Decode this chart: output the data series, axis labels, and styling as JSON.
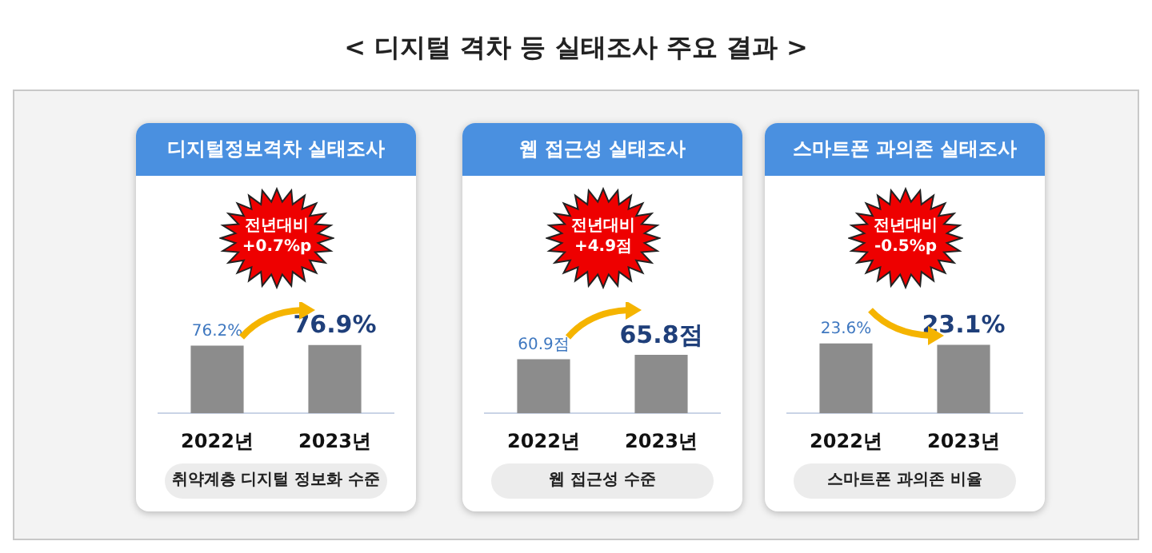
{
  "chart_data": [
    {
      "type": "other",
      "title": "< 디지털 격차 등 실태조사 주요 결과 >"
    },
    {
      "type": "bar",
      "title": "디지털정보격차 실태조사",
      "xlabel": "취약계층 디지털 정보화 수준",
      "categories": [
        "2022년",
        "2023년"
      ],
      "values": [
        76.2,
        76.9
      ],
      "colors": [
        "#8c8c8c",
        "#8c8c8c"
      ],
      "value_labels": [
        "76.2%",
        "76.9%"
      ],
      "annotations": [
        "전년대비\n+0.7%p"
      ]
    },
    {
      "type": "bar",
      "title": "웹 접근성 실태조사",
      "xlabel": "웹 접근성 수준",
      "categories": [
        "2022년",
        "2023년"
      ],
      "values": [
        60.9,
        65.8
      ],
      "colors": [
        "#8c8c8c",
        "#8c8c8c"
      ],
      "value_labels": [
        "60.9점",
        "65.8점"
      ],
      "annotations": [
        "전년대비\n+4.9점"
      ]
    },
    {
      "type": "bar",
      "title": "스마트폰 과의존 실태조사",
      "xlabel": "스마트폰 과의존 비율",
      "categories": [
        "2022년",
        "2023년"
      ],
      "values": [
        23.6,
        23.1
      ],
      "colors": [
        "#8c8c8c",
        "#8c8c8c"
      ],
      "value_labels": [
        "23.6%",
        "23.1%"
      ],
      "annotations": [
        "전년대비\n-0.5%p"
      ]
    }
  ]
}
